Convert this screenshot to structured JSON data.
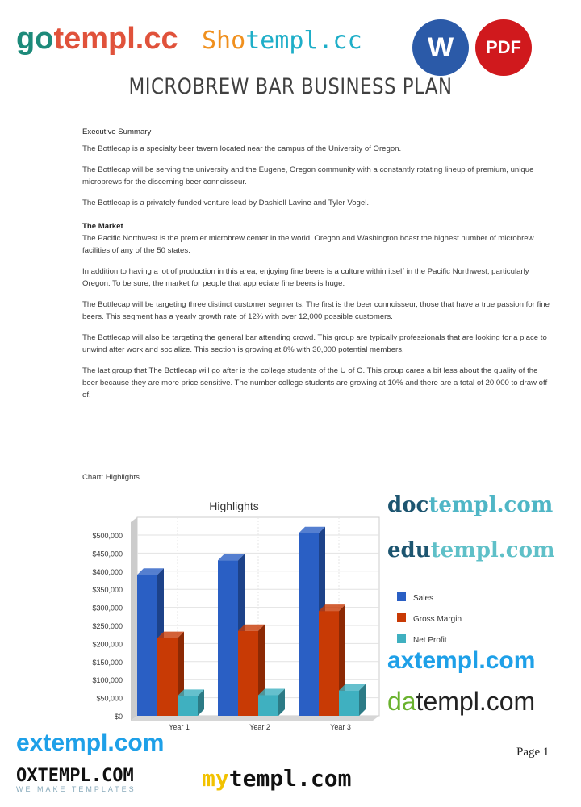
{
  "header": {
    "title": "MICROBREW BAR BUSINESS PLAN",
    "badges": [
      {
        "label": "W",
        "color": "#2b5aa8"
      },
      {
        "label": "PDF",
        "color": "#d0191d"
      }
    ]
  },
  "body": {
    "section_heading": "Executive Summary",
    "paragraphs_1": [
      "The Bottlecap is a specialty beer tavern located near the campus of the University of Oregon.",
      "The Bottlecap will be serving the university and the Eugene, Oregon community with a constantly rotating lineup of premium, unique microbrews for the discerning beer connoisseur.",
      "The Bottlecap is a privately-funded venture lead by Dashiell Lavine and Tyler Vogel."
    ],
    "market_heading": "The Market",
    "paragraphs_2": [
      "The Pacific Northwest is the premier microbrew center in the world. Oregon and Washington boast the highest number of microbrew facilities of any of the 50 states.",
      "In addition to having a lot of production in this area, enjoying fine beers is a culture within itself in the Pacific Northwest, particularly Oregon. To be sure, the market for people that appreciate fine beers is huge.",
      "The Bottlecap will be targeting three distinct customer segments. The first is the beer connoisseur, those that have a true passion for fine beers. This segment has a yearly growth rate of 12% with over 12,000 possible customers.",
      "The Bottlecap will also be targeting the general bar attending crowd. This group are typically professionals that are looking for a place to unwind after work and socialize. This section is growing at 8% with 30,000 potential members.",
      "The last group that The Bottlecap will go after is the college students of the U of O. This group cares a bit less about the quality of the beer because they are more price sensitive. The number college students are growing at 10% and there are a total of 20,000 to draw off of."
    ],
    "chart_caption": "Chart: Highlights"
  },
  "chart_data": {
    "type": "bar",
    "title": "Highlights",
    "categories": [
      "Year 1",
      "Year 2",
      "Year 3"
    ],
    "series": [
      {
        "name": "Sales",
        "values": [
          390000,
          430000,
          505000
        ],
        "color": "#2a5fc4"
      },
      {
        "name": "Gross Margin",
        "values": [
          215000,
          235000,
          290000
        ],
        "color": "#c83a05"
      },
      {
        "name": "Net Profit",
        "values": [
          55000,
          57000,
          70000
        ],
        "color": "#3fb0c0"
      }
    ],
    "ylim": [
      0,
      500000
    ],
    "yticks": [
      "$0",
      "$50,000",
      "$100,000",
      "$150,000",
      "$200,000",
      "$250,000",
      "$300,000",
      "$350,000",
      "$400,000",
      "$450,000",
      "$500,000"
    ],
    "grid": true,
    "legend": "right"
  },
  "footer": {
    "page": "Page 1"
  },
  "watermarks": [
    {
      "a": "go",
      "b": "templ.cc",
      "ca": "#1d8a7a",
      "cb": "#e0523b"
    },
    {
      "a": "Sho",
      "b": "templ.cc",
      "ca": "#f0901e",
      "cb": "#1eaec8"
    },
    {
      "a": "OXTEMPL.COM",
      "b": "WE MAKE TEMPLATES",
      "ca": "#111",
      "cb": "#7aa"
    },
    {
      "a": "da",
      "b": "templ.com",
      "ca": "#6ab22e",
      "cb": "#222"
    },
    {
      "a": "my",
      "b": "templ.com",
      "ca": "#f2c200",
      "cb": "#111"
    },
    {
      "a": "doc",
      "b": "templ.com",
      "ca": "#1d5570",
      "cb": "#4fb6c6"
    },
    {
      "a": "edu",
      "b": "templ.com",
      "ca": "#1d5570",
      "cb": "#5fc0c8"
    },
    {
      "a": "ax",
      "b": "templ.com",
      "ca": "#1ea0e8",
      "cb": "#1ea0e8"
    },
    {
      "a": "ex",
      "b": "templ.com",
      "ca": "#1ea0e8",
      "cb": "#1ea0e8"
    }
  ]
}
